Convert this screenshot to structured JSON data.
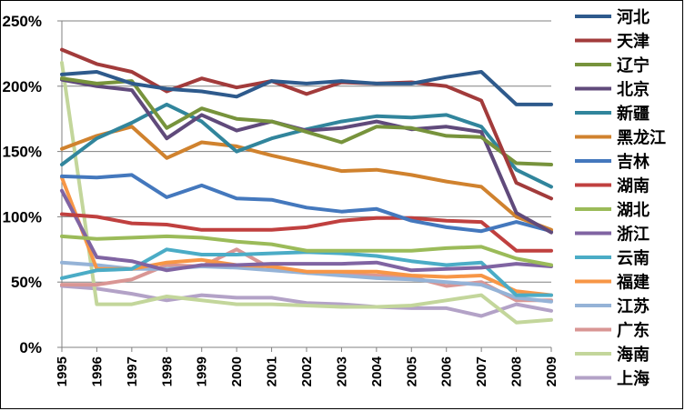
{
  "chart_data": {
    "type": "line",
    "title": "",
    "xlabel": "",
    "ylabel": "",
    "x": [
      "1995",
      "1996",
      "1997",
      "1998",
      "1999",
      "2000",
      "2001",
      "2002",
      "2003",
      "2004",
      "2005",
      "2006",
      "2007",
      "2008",
      "2009"
    ],
    "y_ticks": [
      "0%",
      "50%",
      "100%",
      "150%",
      "200%",
      "250%"
    ],
    "ylim": [
      0,
      250
    ],
    "grid": "horizontal",
    "legend_position": "right",
    "series": [
      {
        "name": "河北",
        "color": "#2E5A8C",
        "values": [
          209,
          211,
          202,
          198,
          196,
          192,
          204,
          202,
          204,
          202,
          202,
          207,
          211,
          186,
          186
        ]
      },
      {
        "name": "天津",
        "color": "#A23B3B",
        "values": [
          228,
          217,
          211,
          196,
          206,
          199,
          204,
          194,
          203,
          202,
          203,
          200,
          189,
          126,
          114
        ]
      },
      {
        "name": "辽宁",
        "color": "#77933C",
        "values": [
          206,
          202,
          204,
          168,
          183,
          175,
          173,
          165,
          157,
          169,
          168,
          162,
          161,
          141,
          140
        ]
      },
      {
        "name": "北京",
        "color": "#604A7B",
        "values": [
          205,
          200,
          197,
          160,
          178,
          166,
          173,
          166,
          168,
          173,
          167,
          169,
          165,
          103,
          88
        ]
      },
      {
        "name": "新疆",
        "color": "#31859C",
        "values": [
          140,
          160,
          172,
          186,
          173,
          150,
          160,
          167,
          173,
          177,
          176,
          178,
          169,
          136,
          123
        ]
      },
      {
        "name": "黑龙江",
        "color": "#D0822E",
        "values": [
          152,
          162,
          169,
          145,
          157,
          154,
          147,
          141,
          135,
          136,
          132,
          127,
          123,
          100,
          90
        ]
      },
      {
        "name": "吉林",
        "color": "#4478BD",
        "values": [
          131,
          130,
          132,
          115,
          124,
          114,
          113,
          107,
          104,
          106,
          97,
          92,
          89,
          96,
          89
        ]
      },
      {
        "name": "湖南",
        "color": "#C0403F",
        "values": [
          102,
          100,
          95,
          94,
          90,
          90,
          90,
          92,
          97,
          99,
          99,
          97,
          96,
          74,
          74
        ]
      },
      {
        "name": "湖北",
        "color": "#9BBB59",
        "values": [
          85,
          83,
          84,
          85,
          84,
          81,
          79,
          74,
          74,
          74,
          74,
          76,
          77,
          68,
          63
        ]
      },
      {
        "name": "浙江",
        "color": "#8064A2",
        "values": [
          120,
          69,
          66,
          59,
          63,
          63,
          64,
          64,
          64,
          65,
          59,
          60,
          61,
          64,
          62
        ]
      },
      {
        "name": "云南",
        "color": "#4BACC6",
        "values": [
          53,
          59,
          60,
          75,
          71,
          71,
          72,
          73,
          72,
          70,
          66,
          63,
          65,
          40,
          40
        ]
      },
      {
        "name": "福建",
        "color": "#F79646",
        "values": [
          130,
          60,
          60,
          65,
          67,
          63,
          62,
          58,
          58,
          58,
          55,
          54,
          55,
          43,
          40
        ]
      },
      {
        "name": "江苏",
        "color": "#95B3D7",
        "values": [
          65,
          63,
          60,
          60,
          62,
          61,
          59,
          57,
          55,
          53,
          52,
          50,
          48,
          38,
          35
        ]
      },
      {
        "name": "广东",
        "color": "#D99694",
        "values": [
          48,
          48,
          52,
          63,
          62,
          75,
          60,
          57,
          56,
          55,
          54,
          47,
          50,
          36,
          36
        ]
      },
      {
        "name": "海南",
        "color": "#C3D69B",
        "values": [
          218,
          33,
          33,
          39,
          36,
          33,
          33,
          32,
          31,
          31,
          32,
          36,
          40,
          19,
          21
        ]
      },
      {
        "name": "上海",
        "color": "#B3A2C7",
        "values": [
          47,
          45,
          41,
          36,
          40,
          38,
          38,
          34,
          33,
          31,
          30,
          30,
          24,
          33,
          28
        ]
      }
    ]
  }
}
